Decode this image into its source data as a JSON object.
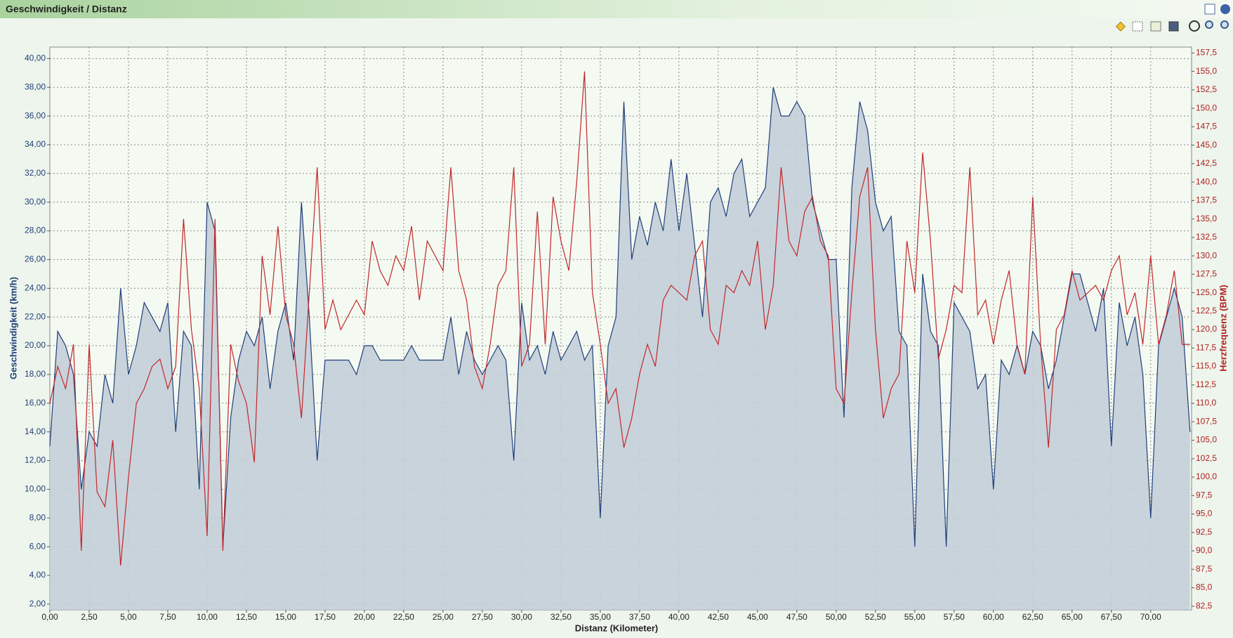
{
  "header": {
    "title": "Geschwindigkeit / Distanz"
  },
  "chart_data": {
    "type": "line",
    "x_label": "Distanz (Kilometer)",
    "y_label": "Geschwindigkeit (km/h)",
    "y2_label": "Herzfrequenz (BPM)",
    "grid": true,
    "xlim": [
      0,
      72.6
    ],
    "ylim": [
      1.6,
      40.8
    ],
    "y2lim": [
      82,
      158.3
    ],
    "xticks": [
      {
        "value": 0,
        "label": "0,00"
      },
      {
        "value": 2.5,
        "label": "2,50"
      },
      {
        "value": 5,
        "label": "5,00"
      },
      {
        "value": 7.5,
        "label": "7,50"
      },
      {
        "value": 10,
        "label": "10,00"
      },
      {
        "value": 12.5,
        "label": "12,50"
      },
      {
        "value": 15,
        "label": "15,00"
      },
      {
        "value": 17.5,
        "label": "17,50"
      },
      {
        "value": 20,
        "label": "20,00"
      },
      {
        "value": 22.5,
        "label": "22,50"
      },
      {
        "value": 25,
        "label": "25,00"
      },
      {
        "value": 27.5,
        "label": "27,50"
      },
      {
        "value": 30,
        "label": "30,00"
      },
      {
        "value": 32.5,
        "label": "32,50"
      },
      {
        "value": 35,
        "label": "35,00"
      },
      {
        "value": 37.5,
        "label": "37,50"
      },
      {
        "value": 40,
        "label": "40,00"
      },
      {
        "value": 42.5,
        "label": "42,50"
      },
      {
        "value": 45,
        "label": "45,00"
      },
      {
        "value": 47.5,
        "label": "47,50"
      },
      {
        "value": 50,
        "label": "50,00"
      },
      {
        "value": 52.5,
        "label": "52,50"
      },
      {
        "value": 55,
        "label": "55,00"
      },
      {
        "value": 57.5,
        "label": "57,50"
      },
      {
        "value": 60,
        "label": "60,00"
      },
      {
        "value": 62.5,
        "label": "62,50"
      },
      {
        "value": 65,
        "label": "65,00"
      },
      {
        "value": 67.5,
        "label": "67,50"
      },
      {
        "value": 70,
        "label": "70,00"
      }
    ],
    "yticks": [
      {
        "value": 2,
        "label": "2,00"
      },
      {
        "value": 4,
        "label": "4,00"
      },
      {
        "value": 6,
        "label": "6,00"
      },
      {
        "value": 8,
        "label": "8,00"
      },
      {
        "value": 10,
        "label": "10,00"
      },
      {
        "value": 12,
        "label": "12,00"
      },
      {
        "value": 14,
        "label": "14,00"
      },
      {
        "value": 16,
        "label": "16,00"
      },
      {
        "value": 18,
        "label": "18,00"
      },
      {
        "value": 20,
        "label": "20,00"
      },
      {
        "value": 22,
        "label": "22,00"
      },
      {
        "value": 24,
        "label": "24,00"
      },
      {
        "value": 26,
        "label": "26,00"
      },
      {
        "value": 28,
        "label": "28,00"
      },
      {
        "value": 30,
        "label": "30,00"
      },
      {
        "value": 32,
        "label": "32,00"
      },
      {
        "value": 34,
        "label": "34,00"
      },
      {
        "value": 36,
        "label": "36,00"
      },
      {
        "value": 38,
        "label": "38,00"
      },
      {
        "value": 40,
        "label": "40,00"
      }
    ],
    "y2ticks": [
      {
        "value": 82.5,
        "label": "82,5"
      },
      {
        "value": 85,
        "label": "85,0"
      },
      {
        "value": 87.5,
        "label": "87,5"
      },
      {
        "value": 90,
        "label": "90,0"
      },
      {
        "value": 92.5,
        "label": "92,5"
      },
      {
        "value": 95,
        "label": "95,0"
      },
      {
        "value": 97.5,
        "label": "97,5"
      },
      {
        "value": 100,
        "label": "100,0"
      },
      {
        "value": 102.5,
        "label": "102,5"
      },
      {
        "value": 105,
        "label": "105,0"
      },
      {
        "value": 107.5,
        "label": "107,5"
      },
      {
        "value": 110,
        "label": "110,0"
      },
      {
        "value": 112.5,
        "label": "112,5"
      },
      {
        "value": 115,
        "label": "115,0"
      },
      {
        "value": 117.5,
        "label": "117,5"
      },
      {
        "value": 120,
        "label": "120,0"
      },
      {
        "value": 122.5,
        "label": "122,5"
      },
      {
        "value": 125,
        "label": "125,0"
      },
      {
        "value": 127.5,
        "label": "127,5"
      },
      {
        "value": 130,
        "label": "130,0"
      },
      {
        "value": 132.5,
        "label": "132,5"
      },
      {
        "value": 135,
        "label": "135,0"
      },
      {
        "value": 137.5,
        "label": "137,5"
      },
      {
        "value": 140,
        "label": "140,0"
      },
      {
        "value": 142.5,
        "label": "142,5"
      },
      {
        "value": 145,
        "label": "145,0"
      },
      {
        "value": 147.5,
        "label": "147,5"
      },
      {
        "value": 150,
        "label": "150,0"
      },
      {
        "value": 152.5,
        "label": "152,5"
      },
      {
        "value": 155,
        "label": "155,0"
      },
      {
        "value": 157.5,
        "label": "157,5"
      }
    ],
    "x": [
      0,
      0.5,
      1,
      1.5,
      2,
      2.5,
      3,
      3.5,
      4,
      4.5,
      5,
      5.5,
      6,
      6.5,
      7,
      7.5,
      8,
      8.5,
      9,
      9.5,
      10,
      10.5,
      11,
      11.5,
      12,
      12.5,
      13,
      13.5,
      14,
      14.5,
      15,
      15.5,
      16,
      16.5,
      17,
      17.5,
      18,
      18.5,
      19,
      19.5,
      20,
      20.5,
      21,
      21.5,
      22,
      22.5,
      23,
      23.5,
      24,
      24.5,
      25,
      25.5,
      26,
      26.5,
      27,
      27.5,
      28,
      28.5,
      29,
      29.5,
      30,
      30.5,
      31,
      31.5,
      32,
      32.5,
      33,
      33.5,
      34,
      34.5,
      35,
      35.5,
      36,
      36.5,
      37,
      37.5,
      38,
      38.5,
      39,
      39.5,
      40,
      40.5,
      41,
      41.5,
      42,
      42.5,
      43,
      43.5,
      44,
      44.5,
      45,
      45.5,
      46,
      46.5,
      47,
      47.5,
      48,
      48.5,
      49,
      49.5,
      50,
      50.5,
      51,
      51.5,
      52,
      52.5,
      53,
      53.5,
      54,
      54.5,
      55,
      55.5,
      56,
      56.5,
      57,
      57.5,
      58,
      58.5,
      59,
      59.5,
      60,
      60.5,
      61,
      61.5,
      62,
      62.5,
      63,
      63.5,
      64,
      64.5,
      65,
      65.5,
      66,
      66.5,
      67,
      67.5,
      68,
      68.5,
      69,
      69.5,
      70,
      70.5,
      71,
      71.5,
      72,
      72.5
    ],
    "series": [
      {
        "color": "#1f3f7a",
        "fill": "#c4ced9",
        "values": [
          13,
          21,
          20,
          18,
          10,
          14,
          13,
          18,
          16,
          24,
          18,
          20,
          23,
          22,
          21,
          23,
          14,
          21,
          20,
          10,
          30,
          28,
          6,
          15,
          19,
          21,
          20,
          22,
          17,
          21,
          23,
          19,
          30,
          22,
          12,
          19,
          19,
          19,
          19,
          18,
          20,
          20,
          19,
          19,
          19,
          19,
          20,
          19,
          19,
          19,
          19,
          22,
          18,
          21,
          19,
          18,
          19,
          20,
          19,
          12,
          23,
          19,
          20,
          18,
          21,
          19,
          20,
          21,
          19,
          20,
          8,
          20,
          22,
          37,
          26,
          29,
          27,
          30,
          28,
          33,
          28,
          32,
          27,
          22,
          30,
          31,
          29,
          32,
          33,
          29,
          30,
          31,
          38,
          36,
          36,
          37,
          36,
          30,
          28,
          26,
          26,
          15,
          31,
          37,
          35,
          30,
          28,
          29,
          21,
          20,
          6,
          25,
          21,
          20,
          6,
          23,
          22,
          21,
          17,
          18,
          10,
          19,
          18,
          20,
          18,
          21,
          20,
          17,
          19,
          22,
          25,
          25,
          23,
          21,
          24,
          13,
          23,
          20,
          22,
          18,
          8,
          20,
          22,
          24,
          22,
          14
        ]
      },
      {
        "color": "#c0282a",
        "axis": "y2",
        "values": [
          110,
          115,
          112,
          118,
          90,
          118,
          98,
          96,
          105,
          88,
          100,
          110,
          112,
          115,
          116,
          112,
          115,
          135,
          120,
          112,
          92,
          135,
          90,
          118,
          113,
          110,
          102,
          130,
          122,
          134,
          122,
          118,
          108,
          125,
          142,
          120,
          124,
          120,
          122,
          124,
          122,
          132,
          128,
          126,
          130,
          128,
          134,
          124,
          132,
          130,
          128,
          142,
          128,
          124,
          115,
          112,
          118,
          126,
          128,
          142,
          115,
          118,
          136,
          118,
          138,
          132,
          128,
          140,
          155,
          125,
          118,
          110,
          112,
          104,
          108,
          114,
          118,
          115,
          124,
          126,
          125,
          124,
          130,
          132,
          120,
          118,
          126,
          125,
          128,
          126,
          132,
          120,
          126,
          142,
          132,
          130,
          136,
          138,
          132,
          130,
          112,
          110,
          125,
          138,
          142,
          120,
          108,
          112,
          114,
          132,
          125,
          144,
          132,
          116,
          120,
          126,
          125,
          142,
          122,
          124,
          118,
          124,
          128,
          118,
          114,
          138,
          118,
          104,
          120,
          122,
          128,
          124,
          125,
          126,
          124,
          128,
          130,
          122,
          125,
          118,
          130,
          118,
          122,
          128,
          118,
          118
        ]
      }
    ]
  }
}
